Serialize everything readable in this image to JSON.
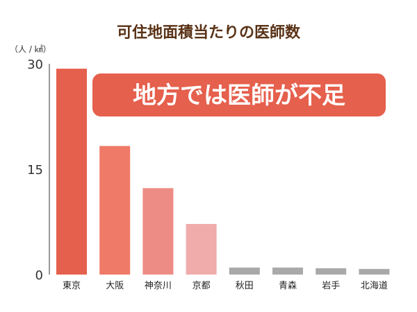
{
  "chart_data": {
    "type": "bar",
    "title": "可住地面積当たりの医師数",
    "ylabel": "（人 / ㎢）",
    "xlabel": "",
    "categories": [
      "東京",
      "大阪",
      "神奈川",
      "京都",
      "秋田",
      "青森",
      "岩手",
      "北海道"
    ],
    "values": [
      29.3,
      18.3,
      12.3,
      7.2,
      1.0,
      1.0,
      0.9,
      0.8
    ],
    "yticks": [
      0,
      15,
      30
    ],
    "ylim": [
      0,
      30
    ],
    "grid": false,
    "annotation": "地方では医師が不足",
    "colors": [
      "#e5604d",
      "#ef7a67",
      "#ed8c84",
      "#f0abab",
      "#a9a9a9",
      "#a9a9a9",
      "#a9a9a9",
      "#a9a9a9"
    ],
    "annotation_color": "#e5604d",
    "axis_color": "#7a7a7a"
  }
}
